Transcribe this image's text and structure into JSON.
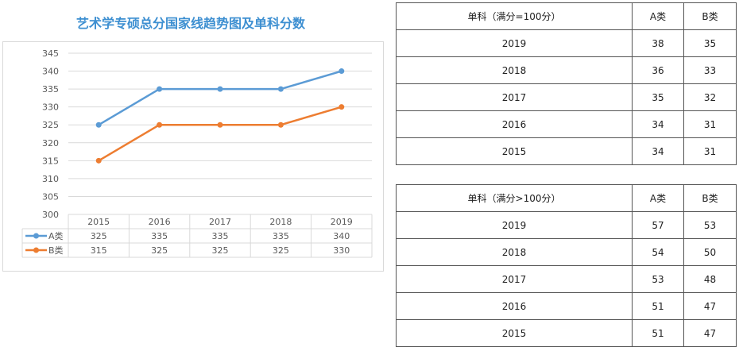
{
  "chart_title": "艺术学专硕总分国家线趋势图及单科分数",
  "chart_data": {
    "type": "line",
    "categories": [
      "2015",
      "2016",
      "2017",
      "2018",
      "2019"
    ],
    "series": [
      {
        "name": "A类",
        "values": [
          325,
          335,
          335,
          335,
          340
        ],
        "color": "#5b9bd5"
      },
      {
        "name": "B类",
        "values": [
          315,
          325,
          325,
          325,
          330
        ],
        "color": "#ed7d31"
      }
    ],
    "ylim": [
      300,
      345
    ],
    "yticks": [
      300,
      305,
      310,
      315,
      320,
      325,
      330,
      335,
      340,
      345
    ],
    "grid": true,
    "data_table": true
  },
  "table1": {
    "header": [
      "单科（满分=100分）",
      "A类",
      "B类"
    ],
    "rows": [
      [
        "2019",
        "38",
        "35"
      ],
      [
        "2018",
        "36",
        "33"
      ],
      [
        "2017",
        "35",
        "32"
      ],
      [
        "2016",
        "34",
        "31"
      ],
      [
        "2015",
        "34",
        "31"
      ]
    ]
  },
  "table2": {
    "header": [
      "单科（满分>100分）",
      "A类",
      "B类"
    ],
    "rows": [
      [
        "2019",
        "57",
        "53"
      ],
      [
        "2018",
        "54",
        "50"
      ],
      [
        "2017",
        "53",
        "48"
      ],
      [
        "2016",
        "51",
        "47"
      ],
      [
        "2015",
        "51",
        "47"
      ]
    ]
  }
}
